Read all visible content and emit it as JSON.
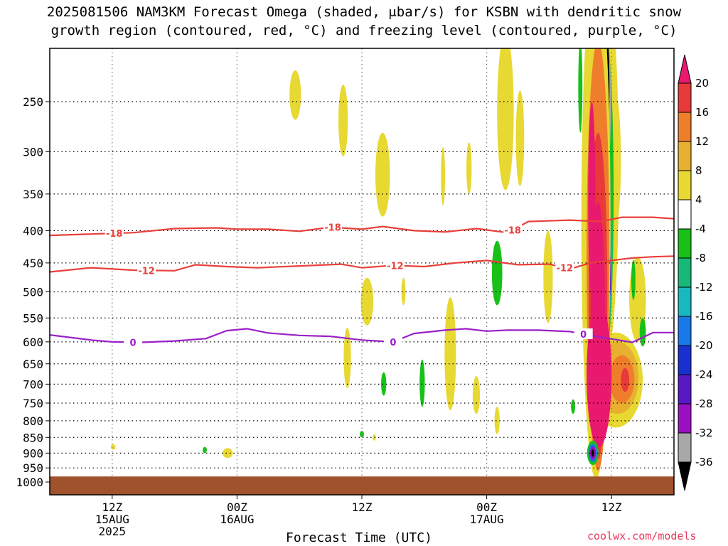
{
  "title_line1": "2025081506 NAM3KM Forecast Omega (shaded, μbar/s) for KSBN with dendritic snow",
  "title_line2": "growth region (contoured, red, °C) and freezing level (contoured, purple, °C)",
  "credit": "coolwx.com/models",
  "colors": {
    "temp_contour": "#e8403a",
    "freezing_contour": "#9a20c8",
    "ground": "#a0522d"
  },
  "chart_data": {
    "type": "heatmap",
    "title": "2025081506 NAM3KM Forecast Omega (shaded, μbar/s) for KSBN with dendritic snow growth region (contoured, red, °C) and freezing level (contoured, purple, °C)",
    "xlabel": "Forecast Time (UTC)",
    "ylabel": "",
    "x_unit": "hours since 2025-08-15 06Z",
    "xlim": [
      0,
      60
    ],
    "ylim": [
      1000,
      200
    ],
    "y_scale": "log-pressure",
    "grid": true,
    "y_ticks": [
      250,
      300,
      350,
      400,
      450,
      500,
      550,
      600,
      650,
      700,
      750,
      800,
      850,
      900,
      950,
      1000
    ],
    "x_ticks": [
      {
        "x": 6,
        "label": "12Z",
        "sub1": "15AUG",
        "sub2": "2025"
      },
      {
        "x": 18,
        "label": "00Z",
        "sub1": "16AUG",
        "sub2": ""
      },
      {
        "x": 30,
        "label": "12Z",
        "sub1": "",
        "sub2": ""
      },
      {
        "x": 42,
        "label": "00Z",
        "sub1": "17AUG",
        "sub2": ""
      },
      {
        "x": 54,
        "label": "12Z",
        "sub1": "",
        "sub2": ""
      }
    ],
    "colorbar": {
      "labels": [
        "20",
        "16",
        "12",
        "8",
        "4",
        "-4",
        "-8",
        "-12",
        "-16",
        "-20",
        "-24",
        "-28",
        "-32",
        "-36"
      ],
      "colors": [
        "#e8196e",
        "#e83a3a",
        "#ee7e2c",
        "#e8b030",
        "#e8d832",
        "#ffffff",
        "#18c018",
        "#18b878",
        "#18b8c0",
        "#1878e8",
        "#1830d0",
        "#5818c8",
        "#9a10c0",
        "#a8a8a8",
        "#000000"
      ]
    },
    "contours": [
      {
        "level": "-18",
        "color": "#e8403a",
        "label_x": [
          6.2,
          27.2,
          44.5
        ],
        "points": [
          [
            0,
            407
          ],
          [
            4,
            405
          ],
          [
            8,
            403
          ],
          [
            12,
            397
          ],
          [
            16,
            396
          ],
          [
            18,
            398
          ],
          [
            21,
            398
          ],
          [
            24,
            401
          ],
          [
            27,
            395
          ],
          [
            30,
            398
          ],
          [
            32,
            394
          ],
          [
            35,
            400
          ],
          [
            38,
            402
          ],
          [
            41,
            397
          ],
          [
            44,
            403
          ],
          [
            46,
            387
          ],
          [
            50,
            385
          ],
          [
            53,
            387
          ],
          [
            55,
            381
          ],
          [
            58,
            381
          ],
          [
            60,
            383
          ]
        ]
      },
      {
        "level": "-12",
        "color": "#e8403a",
        "label_x": [
          9.3,
          33.2,
          49.5
        ],
        "points": [
          [
            0,
            465
          ],
          [
            4,
            458
          ],
          [
            8,
            462
          ],
          [
            12,
            463
          ],
          [
            14,
            453
          ],
          [
            17,
            456
          ],
          [
            20,
            458
          ],
          [
            24,
            455
          ],
          [
            28,
            452
          ],
          [
            30,
            458
          ],
          [
            33,
            454
          ],
          [
            36,
            456
          ],
          [
            39,
            450
          ],
          [
            42,
            446
          ],
          [
            45,
            453
          ],
          [
            48,
            452
          ],
          [
            50,
            460
          ],
          [
            52,
            450
          ],
          [
            56,
            442
          ],
          [
            58,
            440
          ],
          [
            60,
            439
          ]
        ]
      },
      {
        "level": "0",
        "color": "#9a20c8",
        "label_x": [
          8.0,
          33.0,
          51.3
        ],
        "points": [
          [
            0,
            585
          ],
          [
            4,
            596
          ],
          [
            6,
            600
          ],
          [
            9,
            601
          ],
          [
            12,
            598
          ],
          [
            15,
            593
          ],
          [
            17,
            576
          ],
          [
            19,
            572
          ],
          [
            21,
            581
          ],
          [
            24,
            586
          ],
          [
            27,
            588
          ],
          [
            30,
            596
          ],
          [
            33,
            600
          ],
          [
            35,
            582
          ],
          [
            38,
            575
          ],
          [
            40,
            572
          ],
          [
            42,
            577
          ],
          [
            44,
            575
          ],
          [
            47,
            575
          ],
          [
            50,
            578
          ],
          [
            53,
            590
          ],
          [
            56,
            601
          ],
          [
            58,
            580
          ],
          [
            60,
            580
          ]
        ]
      }
    ],
    "ground_pressure_top": 980,
    "omega_blobs": [
      {
        "x": 6.1,
        "y": 880,
        "rx": 0.22,
        "ry": 9,
        "color": "#e8d832"
      },
      {
        "x": 14.9,
        "y": 890,
        "rx": 0.2,
        "ry": 10,
        "color": "#18c018"
      },
      {
        "x": 17.1,
        "y": 900,
        "rx": 0.5,
        "ry": 16,
        "color": "#e8d832"
      },
      {
        "x": 23.6,
        "y": 245,
        "rx": 0.55,
        "ry": 22,
        "color": "#e8d832"
      },
      {
        "x": 28.2,
        "y": 270,
        "rx": 0.45,
        "ry": 35,
        "color": "#e8d832"
      },
      {
        "x": 28.6,
        "y": 640,
        "rx": 0.35,
        "ry": 70,
        "color": "#e8d832"
      },
      {
        "x": 30.5,
        "y": 520,
        "rx": 0.6,
        "ry": 45,
        "color": "#e8d832"
      },
      {
        "x": 30.0,
        "y": 840,
        "rx": 0.2,
        "ry": 10,
        "color": "#18c018"
      },
      {
        "x": 31.2,
        "y": 850,
        "rx": 0.15,
        "ry": 10,
        "color": "#e8d832"
      },
      {
        "x": 32.0,
        "y": 330,
        "rx": 0.7,
        "ry": 50,
        "color": "#e8d832"
      },
      {
        "x": 32.1,
        "y": 700,
        "rx": 0.25,
        "ry": 30,
        "color": "#18c018"
      },
      {
        "x": 34.0,
        "y": 500,
        "rx": 0.2,
        "ry": 25,
        "color": "#e8d832"
      },
      {
        "x": 35.8,
        "y": 700,
        "rx": 0.25,
        "ry": 60,
        "color": "#18c018"
      },
      {
        "x": 38.5,
        "y": 640,
        "rx": 0.55,
        "ry": 130,
        "color": "#e8d832"
      },
      {
        "x": 37.8,
        "y": 330,
        "rx": 0.2,
        "ry": 35,
        "color": "#e8d832"
      },
      {
        "x": 40.3,
        "y": 320,
        "rx": 0.25,
        "ry": 30,
        "color": "#e8d832"
      },
      {
        "x": 41.0,
        "y": 730,
        "rx": 0.35,
        "ry": 50,
        "color": "#e8d832"
      },
      {
        "x": 43.0,
        "y": 800,
        "rx": 0.25,
        "ry": 40,
        "color": "#e8d832"
      },
      {
        "x": 43.8,
        "y": 270,
        "rx": 0.8,
        "ry": 75,
        "color": "#e8d832"
      },
      {
        "x": 43.0,
        "y": 470,
        "rx": 0.5,
        "ry": 55,
        "color": "#18c018"
      },
      {
        "x": 45.2,
        "y": 290,
        "rx": 0.4,
        "ry": 50,
        "color": "#e8d832"
      },
      {
        "x": 47.9,
        "y": 480,
        "rx": 0.45,
        "ry": 80,
        "color": "#e8d832"
      },
      {
        "x": 50.3,
        "y": 760,
        "rx": 0.2,
        "ry": 20,
        "color": "#18c018"
      },
      {
        "x": 51.0,
        "y": 240,
        "rx": 0.2,
        "ry": 40,
        "color": "#18c018"
      },
      {
        "x": 54.3,
        "y": 320,
        "rx": 0.6,
        "ry": 80,
        "color": "#e8d832"
      },
      {
        "x": 56.5,
        "y": 520,
        "rx": 0.8,
        "ry": 80,
        "color": "#e8d832"
      },
      {
        "x": 56.1,
        "y": 480,
        "rx": 0.2,
        "ry": 35,
        "color": "#18c018"
      },
      {
        "x": 57.0,
        "y": 580,
        "rx": 0.3,
        "ry": 30,
        "color": "#18c018"
      },
      {
        "x": 54.4,
        "y": 700,
        "rx": 2.6,
        "ry": 120,
        "color": "#e8d832"
      },
      {
        "x": 54.6,
        "y": 690,
        "rx": 2.0,
        "ry": 90,
        "color": "#e8b030"
      },
      {
        "x": 55.0,
        "y": 690,
        "rx": 1.2,
        "ry": 60,
        "color": "#ee7e2c"
      },
      {
        "x": 55.3,
        "y": 690,
        "rx": 0.4,
        "ry": 30,
        "color": "#e83a3a"
      },
      {
        "x": 53.4,
        "y": 400,
        "rx": 1.3,
        "ry": 240,
        "color": "#e8d832"
      },
      {
        "x": 53.3,
        "y": 420,
        "rx": 0.9,
        "ry": 230,
        "color": "#18c018"
      },
      {
        "x": 53.5,
        "y": 450,
        "rx": 0.6,
        "ry": 150,
        "color": "#18b878"
      },
      {
        "x": 53.6,
        "y": 460,
        "rx": 0.4,
        "ry": 90,
        "color": "#18b8c0"
      },
      {
        "x": 53.7,
        "y": 470,
        "rx": 0.25,
        "ry": 50,
        "color": "#5818c8"
      },
      {
        "x": 53.7,
        "y": 470,
        "rx": 0.1,
        "ry": 20,
        "color": "#000000"
      },
      {
        "x": 53.5,
        "y": 260,
        "rx": 0.45,
        "ry": 60,
        "color": "#a8a8a8"
      },
      {
        "x": 53.5,
        "y": 240,
        "rx": 0.3,
        "ry": 45,
        "color": "#000000"
      },
      {
        "x": 52.5,
        "y": 570,
        "rx": 1.4,
        "ry": 420,
        "color": "#e8d832"
      },
      {
        "x": 52.7,
        "y": 580,
        "rx": 1.1,
        "ry": 380,
        "color": "#ee7e2c"
      },
      {
        "x": 52.7,
        "y": 600,
        "rx": 0.9,
        "ry": 320,
        "color": "#e83a3a"
      },
      {
        "x": 52.7,
        "y": 620,
        "rx": 0.7,
        "ry": 260,
        "color": "#e8196e"
      },
      {
        "x": 52.8,
        "y": 700,
        "rx": 1.2,
        "ry": 180,
        "color": "#e8196e"
      },
      {
        "x": 52.1,
        "y": 380,
        "rx": 0.35,
        "ry": 130,
        "color": "#e8196e"
      },
      {
        "x": 52.2,
        "y": 900,
        "rx": 0.55,
        "ry": 40,
        "color": "#18c018"
      },
      {
        "x": 52.2,
        "y": 900,
        "rx": 0.4,
        "ry": 30,
        "color": "#1878e8"
      },
      {
        "x": 52.2,
        "y": 900,
        "rx": 0.28,
        "ry": 22,
        "color": "#9a10c0"
      },
      {
        "x": 52.2,
        "y": 900,
        "rx": 0.12,
        "ry": 12,
        "color": "#000000"
      }
    ]
  }
}
